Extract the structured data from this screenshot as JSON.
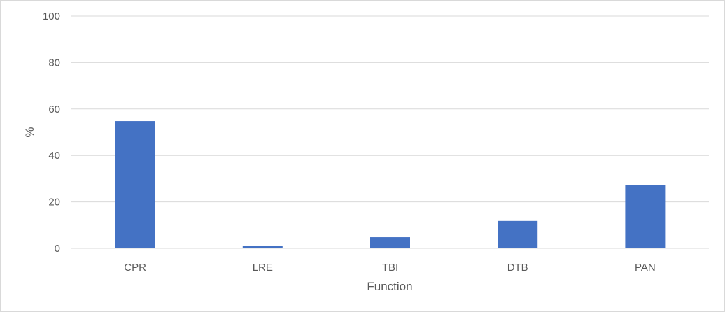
{
  "chart_data": {
    "type": "bar",
    "title": "",
    "xlabel": "Function",
    "ylabel": "%",
    "categories": [
      "CPR",
      "LRE",
      "TBI",
      "DTB",
      "PAN"
    ],
    "values": [
      54.8,
      1.2,
      4.8,
      11.8,
      27.4
    ],
    "ylim": [
      0,
      100
    ],
    "yticks": [
      "0",
      "20",
      "40",
      "60",
      "80",
      "100"
    ],
    "grid": true,
    "bar_color": "#4472c4",
    "gridline_color": "#d9d9d9"
  }
}
